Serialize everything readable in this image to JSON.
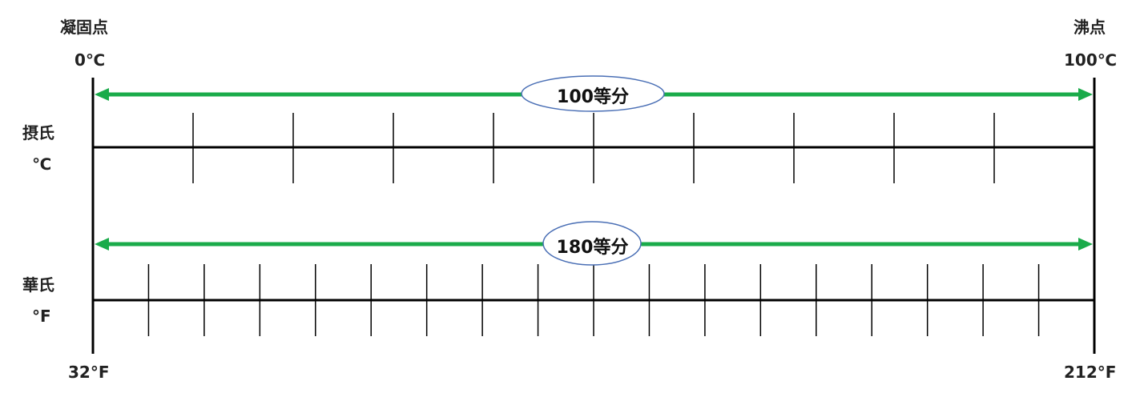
{
  "labels": {
    "freezing_point": "凝固点",
    "boiling_point": "沸点",
    "celsius_zero": "0℃",
    "celsius_hundred": "100℃",
    "celsius_name": "摂氏",
    "celsius_unit": "℃",
    "fahrenheit_name": "華氏",
    "fahrenheit_unit": "°F",
    "fahrenheit_low": "32°F",
    "fahrenheit_high": "212°F"
  },
  "celsius_scale": {
    "divisions_label": "100等分",
    "drawn_segments": 10
  },
  "fahrenheit_scale": {
    "divisions_label": "180等分",
    "drawn_segments": 18
  },
  "colors": {
    "arrow": "#1aab4a",
    "ellipse_stroke": "#4a6fb5",
    "line": "#000000"
  }
}
